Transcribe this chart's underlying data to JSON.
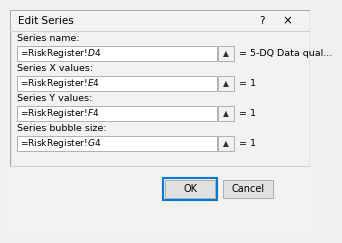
{
  "title": "Edit Series",
  "bg_color": "#f0f0f0",
  "dialog_bg": "#f2f2f2",
  "field_bg": "#ffffff",
  "field_border": "#b0b0b0",
  "labels": [
    "Series name:",
    "Series X values:",
    "Series Y values:",
    "Series bubble size:"
  ],
  "fields": [
    "=RiskRegister!$D$4",
    "=RiskRegister!$E$4",
    "=RiskRegister!$F$4",
    "=RiskRegister!$G$4"
  ],
  "side_labels": [
    "= 5-DQ Data qual...",
    "= 1",
    "= 1",
    "= 1"
  ],
  "ok_label": "OK",
  "cancel_label": "Cancel",
  "title_font_size": 7.5,
  "label_font_size": 6.8,
  "field_font_size": 6.5,
  "side_font_size": 6.8,
  "button_font_size": 7.0,
  "ok_border_color": "#0078d7",
  "cancel_border_color": "#adadad",
  "button_bg": "#e1e1e1",
  "arrow_color": "#333333",
  "title_color": "#000000",
  "field_text_color": "#000000",
  "label_color": "#000000",
  "separator_color": "#d0d0d0",
  "dialog_border_color": "#aaaaaa"
}
